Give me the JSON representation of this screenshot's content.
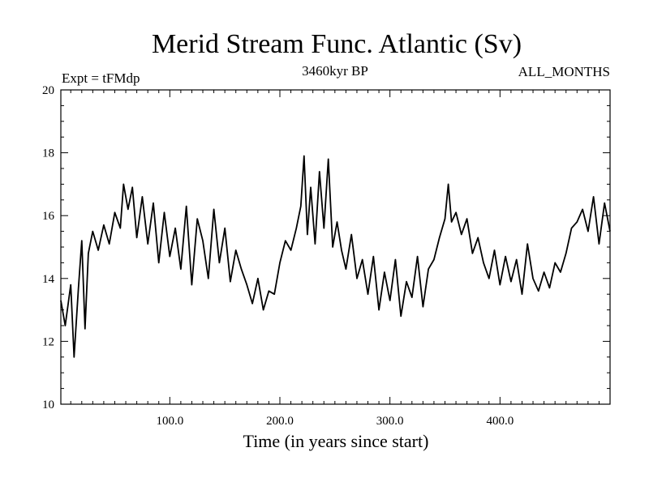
{
  "chart_data": {
    "type": "line",
    "title": "Merid Stream Func. Atlantic (Sv)",
    "subtitle_left": "Expt = tFMdp",
    "subtitle_center": "3460kyr BP",
    "subtitle_right": "ALL_MONTHS",
    "xlabel": "Time (in years since start)",
    "ylabel": "",
    "xlim": [
      1,
      500
    ],
    "ylim": [
      10,
      20
    ],
    "xticks": [
      100,
      200,
      300,
      400
    ],
    "xtick_labels": [
      "100.0",
      "200.0",
      "300.0",
      "400.0"
    ],
    "yticks": [
      10,
      12,
      14,
      16,
      18,
      20
    ],
    "ytick_labels": [
      "10",
      "12",
      "14",
      "16",
      "18",
      "20"
    ],
    "grid": false,
    "legend": "none",
    "series": [
      {
        "name": "Merid Stream Func. Atlantic",
        "color": "#000000",
        "x": [
          1,
          5,
          10,
          13,
          17,
          20,
          23,
          26,
          30,
          35,
          40,
          45,
          50,
          55,
          58,
          62,
          66,
          70,
          75,
          80,
          85,
          90,
          95,
          100,
          105,
          110,
          115,
          120,
          125,
          130,
          135,
          140,
          145,
          150,
          155,
          160,
          165,
          170,
          175,
          180,
          185,
          190,
          195,
          200,
          205,
          210,
          215,
          219,
          222,
          225,
          228,
          232,
          236,
          240,
          244,
          248,
          252,
          256,
          260,
          265,
          270,
          275,
          280,
          285,
          290,
          295,
          300,
          305,
          310,
          315,
          320,
          325,
          330,
          335,
          340,
          345,
          350,
          353,
          356,
          360,
          365,
          370,
          375,
          380,
          385,
          390,
          395,
          400,
          405,
          410,
          415,
          420,
          425,
          430,
          435,
          440,
          445,
          450,
          455,
          460,
          465,
          470,
          475,
          480,
          485,
          490,
          495,
          500
        ],
        "values": [
          13.3,
          12.5,
          13.8,
          11.5,
          13.7,
          15.2,
          12.4,
          14.8,
          15.5,
          14.9,
          15.7,
          15.1,
          16.1,
          15.6,
          17.0,
          16.2,
          16.9,
          15.3,
          16.6,
          15.1,
          16.4,
          14.5,
          16.1,
          14.7,
          15.6,
          14.3,
          16.3,
          13.8,
          15.9,
          15.2,
          14.0,
          16.2,
          14.5,
          15.6,
          13.9,
          14.9,
          14.3,
          13.8,
          13.2,
          14.0,
          13.0,
          13.6,
          13.5,
          14.5,
          15.2,
          14.9,
          15.6,
          16.3,
          17.9,
          15.4,
          16.9,
          15.1,
          17.4,
          15.6,
          17.8,
          15.0,
          15.8,
          14.9,
          14.3,
          15.4,
          14.0,
          14.6,
          13.5,
          14.7,
          13.0,
          14.2,
          13.3,
          14.6,
          12.8,
          13.9,
          13.4,
          14.7,
          13.1,
          14.3,
          14.6,
          15.3,
          15.9,
          17.0,
          15.8,
          16.1,
          15.4,
          15.9,
          14.8,
          15.3,
          14.5,
          14.0,
          14.9,
          13.8,
          14.7,
          13.9,
          14.6,
          13.5,
          15.1,
          14.0,
          13.6,
          14.2,
          13.7,
          14.5,
          14.2,
          14.8,
          15.6,
          15.8,
          16.2,
          15.5,
          16.6,
          15.1,
          16.4,
          15.5
        ]
      }
    ]
  }
}
